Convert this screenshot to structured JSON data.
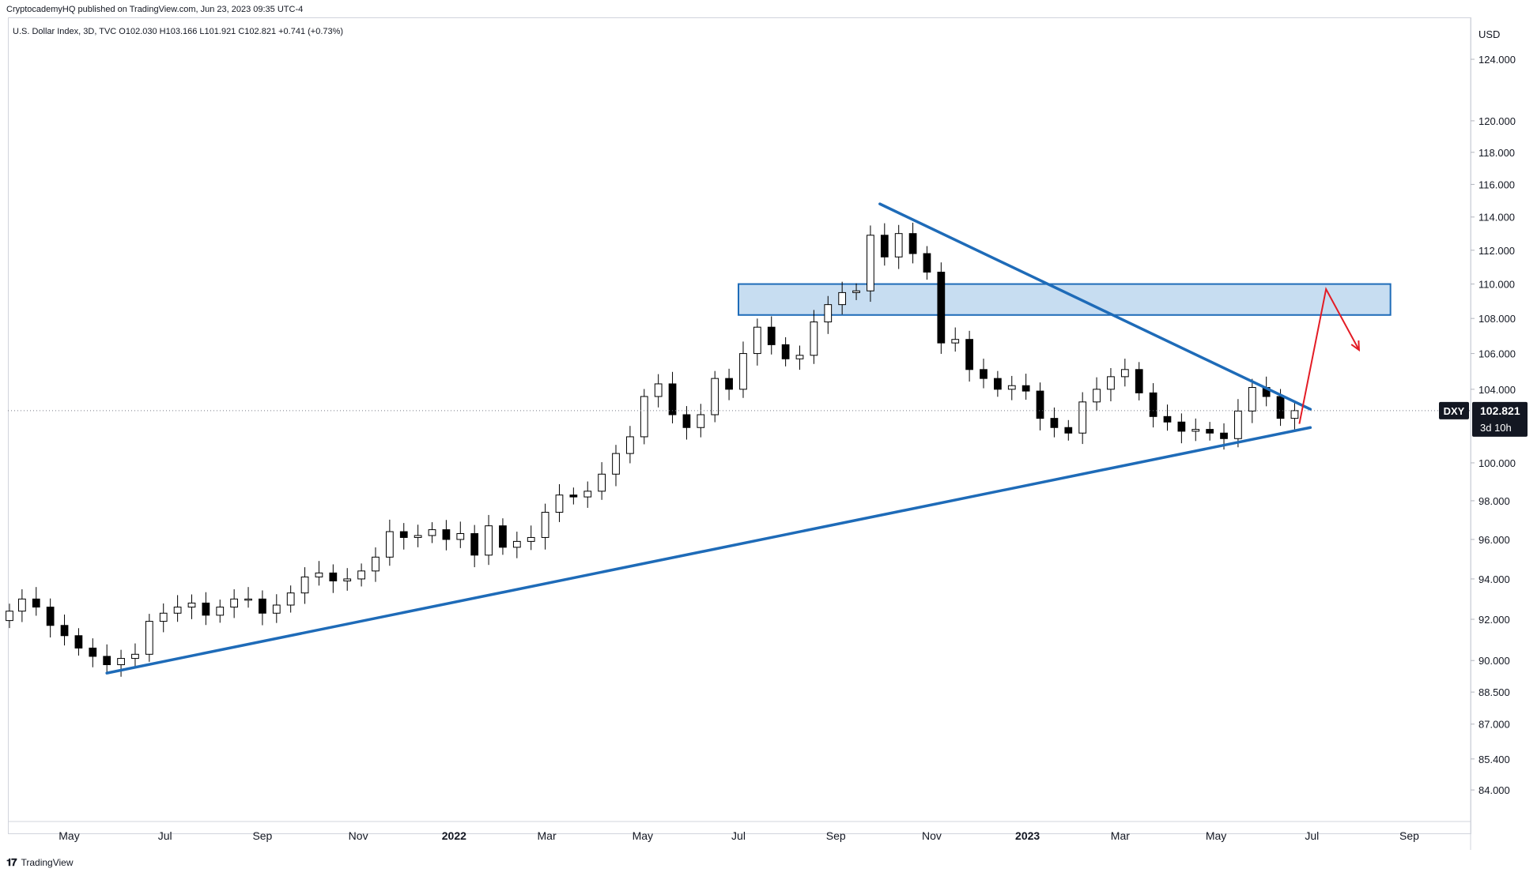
{
  "publisher": "CryptocademyHQ published on TradingView.com, Jun 23, 2023 09:35 UTC-4",
  "legend": "U.S. Dollar Index, 3D, TVC  O102.030  H103.166  L101.921  C102.821  +0.741 (+0.73%)",
  "footer": {
    "brand": "TradingView",
    "logo_icon": "tradingview-logo-icon"
  },
  "price_label": {
    "symbol": "DXY",
    "value": "102.821",
    "countdown": "3d 10h"
  },
  "colors": {
    "up": "#ffffff",
    "down": "#000000",
    "wick": "#000000",
    "trendline": "#1e6bb8",
    "zone_fill": "#bdd7ee",
    "zone_stroke": "#1e6bb8",
    "arrow": "#e31c25",
    "label_bg": "#131722"
  },
  "chart_data": {
    "type": "candlestick",
    "title": "U.S. Dollar Index, 3D, TVC",
    "ylabel": "USD",
    "scale": "log",
    "ylim": [
      82.6,
      126.8
    ],
    "x_range": [
      "2021-03-23",
      "2023-10-10"
    ],
    "y_ticks": [
      "124.000",
      "120.000",
      "118.000",
      "116.000",
      "114.000",
      "112.000",
      "110.000",
      "108.000",
      "106.000",
      "104.000",
      "100.000",
      "98.000",
      "96.000",
      "94.000",
      "92.000",
      "90.000",
      "88.500",
      "87.000",
      "85.400",
      "84.000"
    ],
    "x_ticks": [
      {
        "date": "2021-05-01",
        "label": "May",
        "bold": false
      },
      {
        "date": "2021-07-01",
        "label": "Jul",
        "bold": false
      },
      {
        "date": "2021-09-01",
        "label": "Sep",
        "bold": false
      },
      {
        "date": "2021-11-01",
        "label": "Nov",
        "bold": false
      },
      {
        "date": "2022-01-01",
        "label": "2022",
        "bold": true
      },
      {
        "date": "2022-03-01",
        "label": "Mar",
        "bold": false
      },
      {
        "date": "2022-05-01",
        "label": "May",
        "bold": false
      },
      {
        "date": "2022-07-01",
        "label": "Jul",
        "bold": false
      },
      {
        "date": "2022-09-01",
        "label": "Sep",
        "bold": false
      },
      {
        "date": "2022-11-01",
        "label": "Nov",
        "bold": false
      },
      {
        "date": "2023-01-01",
        "label": "2023",
        "bold": true
      },
      {
        "date": "2023-03-01",
        "label": "Mar",
        "bold": false
      },
      {
        "date": "2023-05-01",
        "label": "May",
        "bold": false
      },
      {
        "date": "2023-07-01",
        "label": "Jul",
        "bold": false
      },
      {
        "date": "2023-09-01",
        "label": "Sep",
        "bold": false
      }
    ],
    "last_close": 102.821,
    "series_close": [
      {
        "date": "2021-03-24",
        "close": 92.4
      },
      {
        "date": "2021-04-01",
        "close": 93.0
      },
      {
        "date": "2021-04-10",
        "close": 92.6
      },
      {
        "date": "2021-04-19",
        "close": 91.7
      },
      {
        "date": "2021-04-28",
        "close": 91.2
      },
      {
        "date": "2021-05-07",
        "close": 90.6
      },
      {
        "date": "2021-05-16",
        "close": 90.2
      },
      {
        "date": "2021-05-25",
        "close": 89.8
      },
      {
        "date": "2021-06-03",
        "close": 90.1
      },
      {
        "date": "2021-06-12",
        "close": 90.3
      },
      {
        "date": "2021-06-21",
        "close": 91.9
      },
      {
        "date": "2021-06-30",
        "close": 92.3
      },
      {
        "date": "2021-07-09",
        "close": 92.6
      },
      {
        "date": "2021-07-18",
        "close": 92.8
      },
      {
        "date": "2021-07-27",
        "close": 92.2
      },
      {
        "date": "2021-08-05",
        "close": 92.6
      },
      {
        "date": "2021-08-14",
        "close": 93.0
      },
      {
        "date": "2021-08-23",
        "close": 93.0
      },
      {
        "date": "2021-09-01",
        "close": 92.3
      },
      {
        "date": "2021-09-10",
        "close": 92.7
      },
      {
        "date": "2021-09-19",
        "close": 93.3
      },
      {
        "date": "2021-09-28",
        "close": 94.1
      },
      {
        "date": "2021-10-07",
        "close": 94.3
      },
      {
        "date": "2021-10-16",
        "close": 93.9
      },
      {
        "date": "2021-10-25",
        "close": 94.0
      },
      {
        "date": "2021-11-03",
        "close": 94.4
      },
      {
        "date": "2021-11-12",
        "close": 95.1
      },
      {
        "date": "2021-11-21",
        "close": 96.4
      },
      {
        "date": "2021-11-30",
        "close": 96.1
      },
      {
        "date": "2021-12-09",
        "close": 96.2
      },
      {
        "date": "2021-12-18",
        "close": 96.5
      },
      {
        "date": "2021-12-27",
        "close": 96.0
      },
      {
        "date": "2022-01-05",
        "close": 96.3
      },
      {
        "date": "2022-01-14",
        "close": 95.2
      },
      {
        "date": "2022-01-23",
        "close": 96.7
      },
      {
        "date": "2022-02-01",
        "close": 95.6
      },
      {
        "date": "2022-02-10",
        "close": 95.9
      },
      {
        "date": "2022-02-19",
        "close": 96.1
      },
      {
        "date": "2022-02-28",
        "close": 97.4
      },
      {
        "date": "2022-03-09",
        "close": 98.3
      },
      {
        "date": "2022-03-18",
        "close": 98.2
      },
      {
        "date": "2022-03-27",
        "close": 98.5
      },
      {
        "date": "2022-04-05",
        "close": 99.4
      },
      {
        "date": "2022-04-14",
        "close": 100.5
      },
      {
        "date": "2022-04-23",
        "close": 101.4
      },
      {
        "date": "2022-05-02",
        "close": 103.6
      },
      {
        "date": "2022-05-11",
        "close": 104.3
      },
      {
        "date": "2022-05-20",
        "close": 102.6
      },
      {
        "date": "2022-05-29",
        "close": 101.9
      },
      {
        "date": "2022-06-07",
        "close": 102.6
      },
      {
        "date": "2022-06-16",
        "close": 104.6
      },
      {
        "date": "2022-06-25",
        "close": 104.0
      },
      {
        "date": "2022-07-04",
        "close": 106.0
      },
      {
        "date": "2022-07-13",
        "close": 107.5
      },
      {
        "date": "2022-07-22",
        "close": 106.5
      },
      {
        "date": "2022-07-31",
        "close": 105.7
      },
      {
        "date": "2022-08-09",
        "close": 105.9
      },
      {
        "date": "2022-08-18",
        "close": 107.8
      },
      {
        "date": "2022-08-27",
        "close": 108.8
      },
      {
        "date": "2022-09-05",
        "close": 109.5
      },
      {
        "date": "2022-09-14",
        "close": 109.6
      },
      {
        "date": "2022-09-23",
        "close": 112.9
      },
      {
        "date": "2022-10-02",
        "close": 111.6
      },
      {
        "date": "2022-10-11",
        "close": 113.0
      },
      {
        "date": "2022-10-20",
        "close": 111.8
      },
      {
        "date": "2022-10-29",
        "close": 110.7
      },
      {
        "date": "2022-11-07",
        "close": 106.6
      },
      {
        "date": "2022-11-16",
        "close": 106.8
      },
      {
        "date": "2022-11-25",
        "close": 105.1
      },
      {
        "date": "2022-12-04",
        "close": 104.6
      },
      {
        "date": "2022-12-13",
        "close": 104.0
      },
      {
        "date": "2022-12-22",
        "close": 104.2
      },
      {
        "date": "2022-12-31",
        "close": 103.9
      },
      {
        "date": "2023-01-09",
        "close": 102.4
      },
      {
        "date": "2023-01-18",
        "close": 101.9
      },
      {
        "date": "2023-01-27",
        "close": 101.6
      },
      {
        "date": "2023-02-05",
        "close": 103.3
      },
      {
        "date": "2023-02-14",
        "close": 104.0
      },
      {
        "date": "2023-02-23",
        "close": 104.7
      },
      {
        "date": "2023-03-04",
        "close": 105.1
      },
      {
        "date": "2023-03-13",
        "close": 103.8
      },
      {
        "date": "2023-03-22",
        "close": 102.5
      },
      {
        "date": "2023-03-31",
        "close": 102.2
      },
      {
        "date": "2023-04-09",
        "close": 101.7
      },
      {
        "date": "2023-04-18",
        "close": 101.8
      },
      {
        "date": "2023-04-27",
        "close": 101.6
      },
      {
        "date": "2023-05-06",
        "close": 101.3
      },
      {
        "date": "2023-05-15",
        "close": 102.8
      },
      {
        "date": "2023-05-24",
        "close": 104.1
      },
      {
        "date": "2023-06-02",
        "close": 103.6
      },
      {
        "date": "2023-06-11",
        "close": 102.4
      },
      {
        "date": "2023-06-20",
        "close": 102.821
      }
    ],
    "annotations": {
      "resistance_zone": {
        "from": "2022-07-01",
        "to": "2023-08-20",
        "low": 108.2,
        "high": 110.0
      },
      "descending_trendline": {
        "from": {
          "date": "2022-09-29",
          "price": 114.8
        },
        "to": {
          "date": "2023-06-30",
          "price": 102.9
        }
      },
      "ascending_trendline": {
        "from": {
          "date": "2021-05-25",
          "price": 89.4
        },
        "to": {
          "date": "2023-06-30",
          "price": 101.9
        }
      },
      "projection_arrow": [
        {
          "date": "2023-06-23",
          "price": 102.1
        },
        {
          "date": "2023-07-10",
          "price": 109.7
        },
        {
          "date": "2023-07-31",
          "price": 106.2
        }
      ]
    }
  }
}
